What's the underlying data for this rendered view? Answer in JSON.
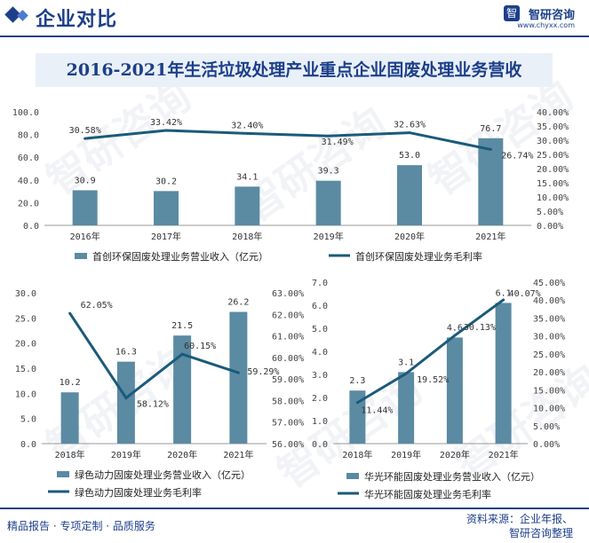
{
  "header": {
    "title": "企业对比",
    "logo_name": "智研咨询",
    "logo_url": "www.chyxx.com",
    "logo_mark": "智"
  },
  "footer": {
    "left": "精品报告 · 专项定制 · 品质服务",
    "source_line1": "资料来源：企业年报、",
    "source_line2": "智研咨询整理"
  },
  "watermark": "智研咨询",
  "colors": {
    "bar": "#5b8aa3",
    "line": "#1b5a7a",
    "brand": "#1d3f8a",
    "title_bg": "#e9f0f8"
  },
  "chart_data": [
    {
      "type": "bar",
      "title": "2016-2021年生活垃圾处理产业重点企业固废处理业务营收",
      "categories": [
        "2016年",
        "2017年",
        "2018年",
        "2019年",
        "2020年",
        "2021年"
      ],
      "series": [
        {
          "name": "首创环保固废处理业务营业收入（亿元）",
          "kind": "bar",
          "axis": "left",
          "values": [
            30.9,
            30.2,
            34.1,
            39.3,
            53.0,
            76.7
          ],
          "labels": [
            "30.9",
            "30.2",
            "34.1",
            "39.3",
            "53.0",
            "76.7"
          ]
        },
        {
          "name": "首创环保固废处理业务毛利率",
          "kind": "line",
          "axis": "right",
          "values": [
            30.58,
            33.42,
            32.4,
            31.49,
            32.63,
            26.74
          ],
          "labels": [
            "30.58%",
            "33.42%",
            "32.40%",
            "31.49%",
            "32.63%",
            "26.74%"
          ]
        }
      ],
      "ylim": [
        0,
        100
      ],
      "yticks": [
        "0.0",
        "20.0",
        "40.0",
        "60.0",
        "80.0",
        "100.0"
      ],
      "y2lim": [
        0,
        40
      ],
      "y2ticks": [
        "0.00%",
        "5.00%",
        "10.00%",
        "15.00%",
        "20.00%",
        "25.00%",
        "30.00%",
        "35.00%",
        "40.00%"
      ]
    },
    {
      "type": "bar",
      "title": "",
      "categories": [
        "2018年",
        "2019年",
        "2020年",
        "2021年"
      ],
      "series": [
        {
          "name": "绿色动力固废处理业务营业收入（亿元）",
          "kind": "bar",
          "axis": "left",
          "values": [
            10.2,
            16.3,
            21.5,
            26.2
          ],
          "labels": [
            "10.2",
            "16.3",
            "21.5",
            "26.2"
          ]
        },
        {
          "name": "绿色动力固废处理业务毛利率",
          "kind": "line",
          "axis": "right",
          "values": [
            62.05,
            58.12,
            60.15,
            59.29
          ],
          "labels": [
            "62.05%",
            "58.12%",
            "60.15%",
            "59.29%"
          ]
        }
      ],
      "ylim": [
        0,
        30
      ],
      "yticks": [
        "0.0",
        "5.0",
        "10.0",
        "15.0",
        "20.0",
        "25.0",
        "30.0"
      ],
      "y2lim": [
        56,
        63
      ],
      "y2ticks": [
        "56.00%",
        "57.00%",
        "58.00%",
        "59.00%",
        "60.00%",
        "61.00%",
        "62.00%",
        "63.00%"
      ]
    },
    {
      "type": "bar",
      "title": "",
      "categories": [
        "2018年",
        "2019年",
        "2020年",
        "2021年"
      ],
      "series": [
        {
          "name": "华光环能固废处理业务营业收入（亿元）",
          "kind": "bar",
          "axis": "left",
          "values": [
            2.3,
            3.1,
            4.6,
            6.1
          ],
          "labels": [
            "2.3",
            "3.1",
            "4.6",
            "6.1"
          ]
        },
        {
          "name": "华光环能固废处理业务毛利率",
          "kind": "line",
          "axis": "right",
          "values": [
            11.44,
            19.52,
            30.13,
            40.07
          ],
          "labels": [
            "11.44%",
            "19.52%",
            "30.13%",
            "40.07%"
          ]
        }
      ],
      "ylim": [
        0,
        7
      ],
      "yticks": [
        "0.0",
        "1.0",
        "2.0",
        "3.0",
        "4.0",
        "5.0",
        "6.0",
        "7.0"
      ],
      "y2lim": [
        0,
        45
      ],
      "y2ticks": [
        "0.00%",
        "5.00%",
        "10.00%",
        "15.00%",
        "20.00%",
        "25.00%",
        "30.00%",
        "35.00%",
        "40.00%",
        "45.00%"
      ]
    }
  ]
}
